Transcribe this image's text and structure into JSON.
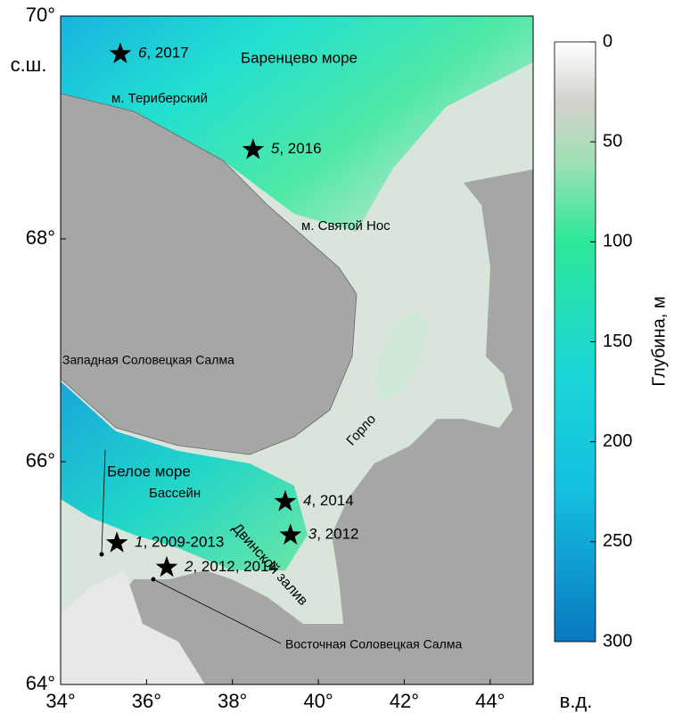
{
  "map": {
    "xlim": [
      34,
      45
    ],
    "ylim": [
      64,
      70
    ],
    "xticks": [
      {
        "value": 34,
        "label": "34°"
      },
      {
        "value": 36,
        "label": "36°"
      },
      {
        "value": 38,
        "label": "38°"
      },
      {
        "value": 40,
        "label": "40°"
      },
      {
        "value": 42,
        "label": "42°"
      },
      {
        "value": 44,
        "label": "44°"
      }
    ],
    "yticks": [
      {
        "value": 64,
        "label": "64°"
      },
      {
        "value": 66,
        "label": "66°"
      },
      {
        "value": 68,
        "label": "68°"
      },
      {
        "value": 70,
        "label": "70°"
      }
    ],
    "x_unit": "в.д.",
    "y_unit": "с.ш."
  },
  "colorbar": {
    "label": "Глубина, м",
    "lim": [
      0,
      300
    ],
    "ticks": [
      0,
      50,
      100,
      150,
      200,
      250,
      300
    ]
  },
  "stations": [
    {
      "number": "6",
      "years": ", 2017",
      "lon": 35.39,
      "lat": 69.66
    },
    {
      "number": "5",
      "years": ", 2016",
      "lon": 38.48,
      "lat": 68.8
    },
    {
      "number": "4",
      "years": ", 2014",
      "lon": 39.23,
      "lat": 65.64
    },
    {
      "number": "3",
      "years": ", 2012",
      "lon": 39.35,
      "lat": 65.34
    },
    {
      "number": "1",
      "years": ", 2009-2013",
      "lon": 35.31,
      "lat": 65.27
    },
    {
      "number": "2",
      "years": ", 2012, 2014",
      "lon": 36.47,
      "lat": 65.05
    }
  ],
  "places": [
    "Баренцево море",
    "м. Териберский",
    "м. Святой Нос",
    "Белое море",
    "Бассейн",
    "Двинской залив",
    "Горло",
    "Западная Соловецкая Салма",
    "Восточная Соловецкая Салма"
  ]
}
